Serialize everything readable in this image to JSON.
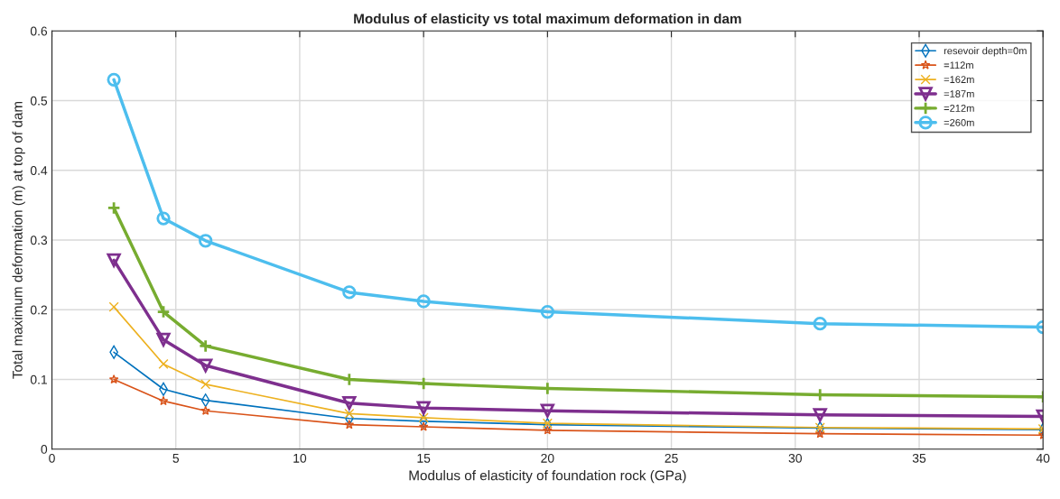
{
  "chart_data": {
    "type": "line",
    "title": "Modulus of elasticity vs total maximum deformation in dam",
    "xlabel": "Modulus of elasticity of foundation rock (GPa)",
    "ylabel": "Total maximum deformation (m) at top of dam",
    "x": [
      2.5,
      4.5,
      6.2,
      12,
      15,
      20,
      31,
      40
    ],
    "xlim": [
      0,
      40
    ],
    "xticks": [
      0,
      5,
      10,
      15,
      20,
      25,
      30,
      35,
      40
    ],
    "ylim": [
      0,
      0.6
    ],
    "yticks": [
      0,
      0.1,
      0.2,
      0.3,
      0.4,
      0.5,
      0.6
    ],
    "grid": true,
    "legend": "top right",
    "series": [
      {
        "name": "resevoir depth=0m",
        "color": "#0072bd",
        "marker": "diamond",
        "values": [
          0.139,
          0.086,
          0.07,
          0.044,
          0.04,
          0.035,
          0.03,
          0.028
        ]
      },
      {
        "name": "=112m",
        "color": "#d95319",
        "marker": "star",
        "values": [
          0.1,
          0.069,
          0.055,
          0.035,
          0.032,
          0.027,
          0.022,
          0.02
        ]
      },
      {
        "name": "=162m",
        "color": "#edb120",
        "marker": "cross",
        "values": [
          0.204,
          0.122,
          0.093,
          0.051,
          0.045,
          0.037,
          0.031,
          0.029
        ]
      },
      {
        "name": "=187m",
        "color": "#7e2f8e",
        "marker": "triangle",
        "values": [
          0.271,
          0.157,
          0.12,
          0.066,
          0.059,
          0.055,
          0.049,
          0.047
        ]
      },
      {
        "name": "=212m",
        "color": "#77ac30",
        "marker": "cross",
        "values": [
          0.346,
          0.197,
          0.148,
          0.1,
          0.094,
          0.087,
          0.078,
          0.075
        ]
      },
      {
        "name": "=260m",
        "color": "#4dbeee",
        "marker": "circle",
        "values": [
          0.53,
          0.331,
          0.299,
          0.225,
          0.212,
          0.197,
          0.18,
          0.175
        ]
      }
    ]
  }
}
